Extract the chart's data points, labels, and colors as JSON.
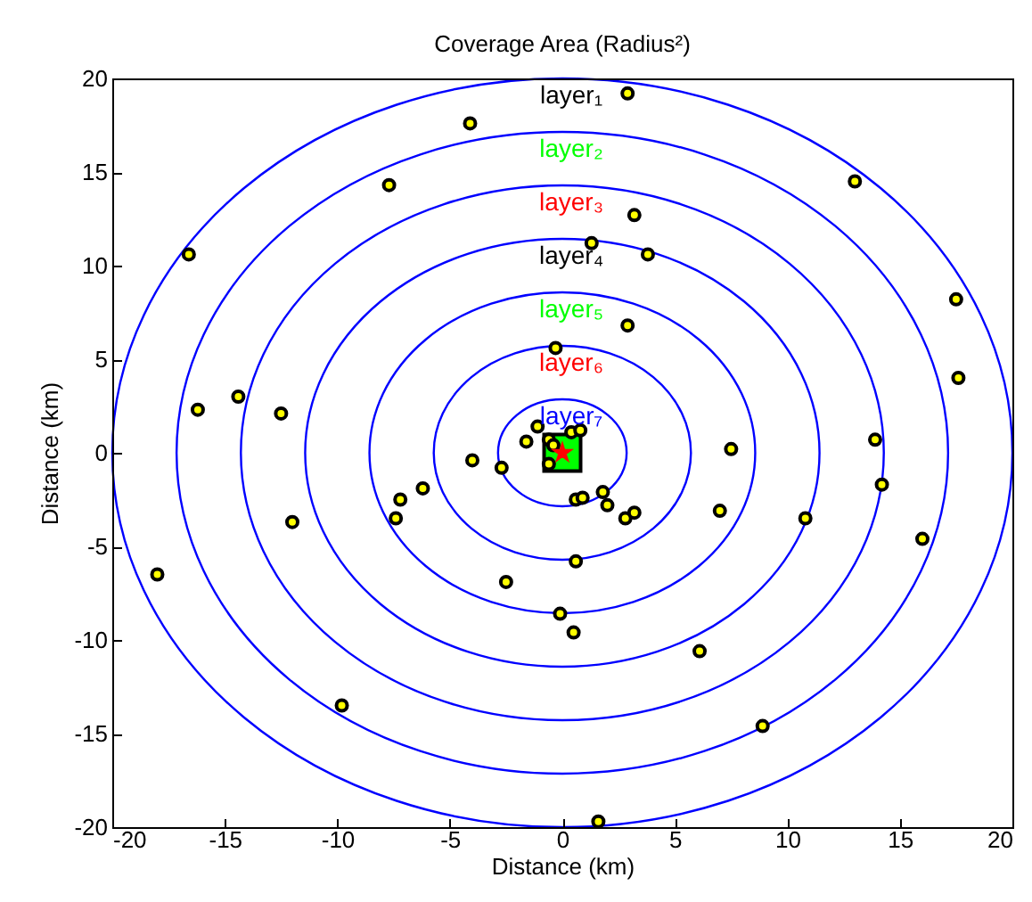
{
  "chart_data": {
    "type": "scatter",
    "title": "Coverage Area (Radius²)",
    "xlabel": "Distance (km)",
    "ylabel": "Distance (km)",
    "xlim": [
      -20,
      20
    ],
    "ylim": [
      -20,
      20
    ],
    "xticks": [
      -20,
      -15,
      -10,
      -5,
      0,
      5,
      10,
      15,
      20
    ],
    "yticks": [
      -20,
      -15,
      -10,
      -5,
      0,
      5,
      10,
      15,
      20
    ],
    "grid": false,
    "series": [
      {
        "type": "scatter",
        "marker": "square",
        "color": "#00ff00",
        "x": [
          0
        ],
        "values": [
          0
        ]
      },
      {
        "type": "scatter",
        "marker": "circle",
        "color": "#ffff00",
        "x": [
          -4.1,
          -7.7,
          -16.6,
          -0.3,
          -16.2,
          -14.4,
          -12.5,
          -1.1,
          -1.6,
          -0.6,
          2.9,
          13.0,
          3.2,
          1.3,
          3.8,
          17.5,
          2.9,
          17.6,
          13.9,
          7.5,
          0.4,
          0.8,
          -0.4,
          -4.0,
          -2.7,
          -6.2,
          -7.2,
          -7.4,
          -12.0,
          -18.0,
          -2.5,
          -0.1,
          -9.8,
          -0.6,
          14.2,
          0.6,
          0.9,
          1.8,
          2.0,
          2.8,
          3.2,
          7.0,
          10.8,
          16.0,
          0.6,
          0.5,
          6.1,
          8.9,
          1.6
        ],
        "values": [
          17.6,
          14.3,
          10.6,
          5.6,
          2.3,
          3.0,
          2.1,
          1.4,
          0.6,
          0.7,
          19.2,
          14.5,
          12.7,
          11.2,
          10.6,
          8.2,
          6.8,
          4.0,
          0.7,
          0.2,
          1.1,
          1.2,
          0.4,
          -0.4,
          -0.8,
          -1.9,
          -2.5,
          -3.5,
          -3.7,
          -6.5,
          -6.9,
          -8.6,
          -13.5,
          -0.6,
          -1.7,
          -2.5,
          -2.4,
          -2.1,
          -2.8,
          -3.5,
          -3.2,
          -3.1,
          -3.5,
          -4.6,
          -5.8,
          -9.6,
          -10.6,
          -14.6,
          -19.7
        ]
      },
      {
        "type": "scatter",
        "marker": "star",
        "color": "#ff0000",
        "x": [
          0
        ],
        "values": [
          0
        ]
      }
    ],
    "annotations": [
      "layer₁",
      "layer₂",
      "layer₃",
      "layer₄",
      "layer₅",
      "layer₆",
      "layer₇"
    ]
  }
}
